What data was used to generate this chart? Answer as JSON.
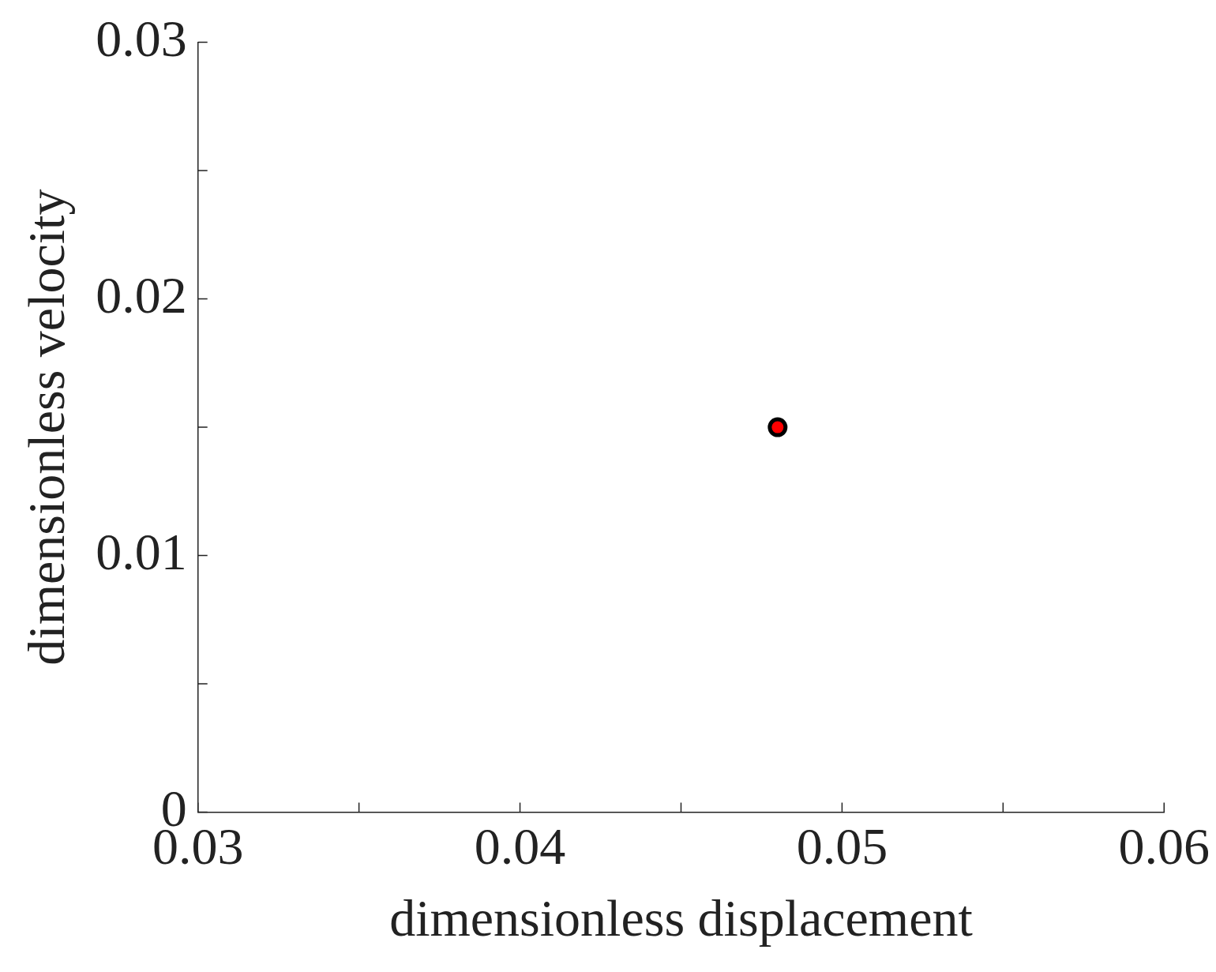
{
  "chart_data": {
    "type": "scatter",
    "xlabel": "dimensionless displacement",
    "ylabel": "dimensionless velocity",
    "x": [
      0.048
    ],
    "series": [
      {
        "color": "#ff0000",
        "values": [
          0.015
        ]
      }
    ],
    "xlim": [
      0.03,
      0.06
    ],
    "xticks": [
      0.03,
      {
        "value": 0.035,
        "label": null
      },
      0.04,
      {
        "value": 0.045,
        "label": null
      },
      0.05,
      {
        "value": 0.055,
        "label": null
      },
      0.06
    ],
    "ylim": [
      0,
      0.03
    ],
    "yticks": [
      0,
      {
        "value": 0.005,
        "label": null
      },
      0.01,
      {
        "value": 0.015,
        "label": null
      },
      0.02,
      {
        "value": 0.025,
        "label": null
      },
      0.03
    ],
    "marker": "circle",
    "grid": false,
    "legend": false
  }
}
